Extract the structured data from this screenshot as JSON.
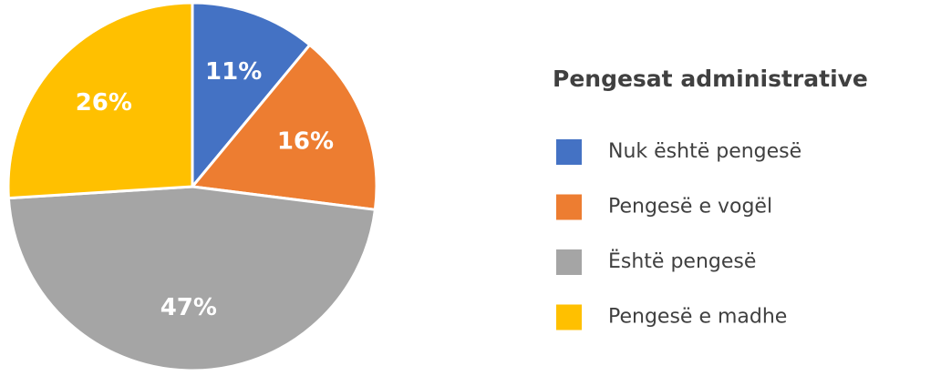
{
  "chart_data": {
    "type": "pie",
    "title": "Pengesat administrative",
    "categories": [
      "Nuk është pengesë",
      "Pengesë e vogël",
      "Është pengesë",
      "Pengesë e madhe"
    ],
    "values": [
      11,
      16,
      47,
      26
    ],
    "value_labels": [
      "11%",
      "16%",
      "47%",
      "26%"
    ],
    "colors": [
      "#4472c4",
      "#ed7d31",
      "#a5a5a5",
      "#ffc000"
    ],
    "legend": "right"
  }
}
